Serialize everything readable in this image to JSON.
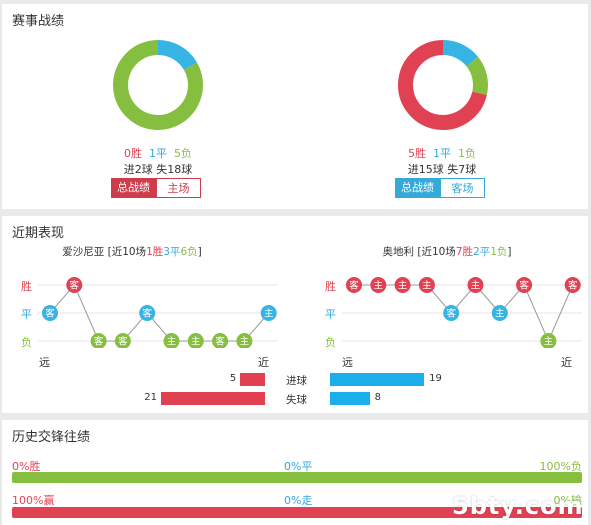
{
  "section1": {
    "title": "赛事战绩",
    "left": {
      "win": "0胜",
      "draw": "1平",
      "loss": "5负",
      "goals": "进2球 失18球",
      "btn_all": "总战绩",
      "btn_venue": "主场",
      "ratio": {
        "win": 0,
        "draw": 1,
        "loss": 5
      }
    },
    "right": {
      "win": "5胜",
      "draw": "1平",
      "loss": "1负",
      "goals": "进15球 失7球",
      "btn_all": "总战绩",
      "btn_venue": "客场",
      "ratio": {
        "win": 5,
        "draw": 1,
        "loss": 1
      }
    }
  },
  "section2": {
    "title": "近期表现",
    "left": {
      "team": "爱沙尼亚",
      "prefix": "[近10场",
      "wins": "1胜",
      "draws": "3平",
      "losses": "6负",
      "suffix": "]",
      "results": [
        {
          "r": "d",
          "v": "客"
        },
        {
          "r": "w",
          "v": "客"
        },
        {
          "r": "l",
          "v": "客"
        },
        {
          "r": "l",
          "v": "客"
        },
        {
          "r": "d",
          "v": "客"
        },
        {
          "r": "l",
          "v": "主"
        },
        {
          "r": "l",
          "v": "主"
        },
        {
          "r": "l",
          "v": "客"
        },
        {
          "r": "l",
          "v": "主"
        },
        {
          "r": "d",
          "v": "主"
        }
      ]
    },
    "right": {
      "team": "奥地利",
      "prefix": "[近10场",
      "wins": "7胜",
      "draws": "2平",
      "losses": "1负",
      "suffix": "]",
      "results": [
        {
          "r": "w",
          "v": "客"
        },
        {
          "r": "w",
          "v": "主"
        },
        {
          "r": "w",
          "v": "主"
        },
        {
          "r": "w",
          "v": "主"
        },
        {
          "r": "d",
          "v": "客"
        },
        {
          "r": "w",
          "v": "主"
        },
        {
          "r": "d",
          "v": "主"
        },
        {
          "r": "w",
          "v": "客"
        },
        {
          "r": "l",
          "v": "主"
        },
        {
          "r": "w",
          "v": "客"
        }
      ]
    },
    "ylabels": {
      "win": "胜",
      "draw": "平",
      "loss": "负"
    },
    "xlabels": {
      "far": "远",
      "near": "近"
    },
    "stats": {
      "scored_label": "进球",
      "conceded_label": "失球",
      "left_scored": "5",
      "left_conceded": "21",
      "right_scored": "19",
      "right_conceded": "8",
      "max": 21
    }
  },
  "section3": {
    "title": "历史交锋往绩",
    "row1": {
      "left": "0%胜",
      "mid": "0%平",
      "right": "100%负",
      "left_pct": 0
    },
    "row2": {
      "left": "100%赢",
      "mid": "0%走",
      "right": "0%输",
      "left_pct": 100
    }
  },
  "watermark": "5bty.com",
  "colors": {
    "win": "#e04253",
    "draw": "#36b4e3",
    "loss": "#86bf3f",
    "bar_red": "#e0404f",
    "bar_blue": "#1aaeea"
  }
}
